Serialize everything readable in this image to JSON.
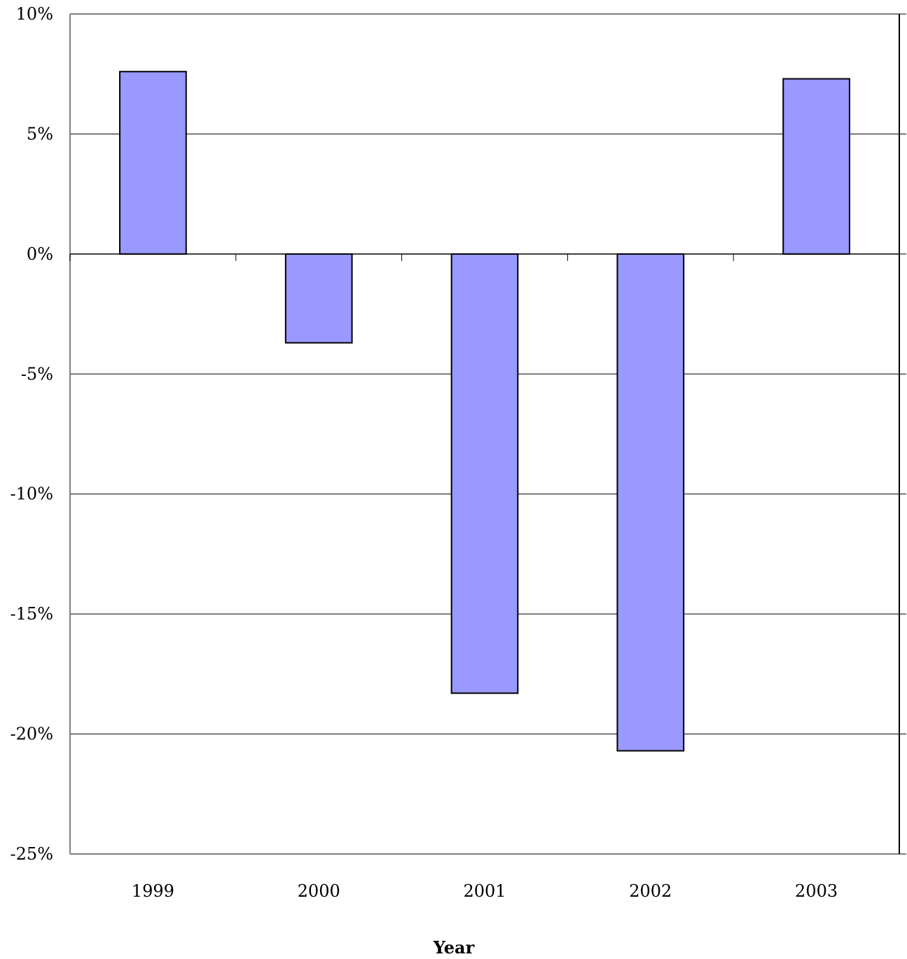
{
  "chart_data": {
    "type": "bar",
    "title": "",
    "xlabel": "Year",
    "ylabel": "",
    "categories": [
      "1999",
      "2000",
      "2001",
      "2002",
      "2003"
    ],
    "values": [
      7.6,
      -3.7,
      -18.3,
      -20.7,
      7.3
    ],
    "ylim": [
      -25,
      10
    ],
    "yticks": [
      10,
      5,
      0,
      -5,
      -10,
      -15,
      -20,
      -25
    ],
    "ytick_labels": [
      "10%",
      "5%",
      "0%",
      "-5%",
      "-10%",
      "-15%",
      "-20%",
      "-25%"
    ],
    "grid": true,
    "legend": "none",
    "colors": {
      "bar_fill": "#9999ff",
      "bar_stroke": "#000000",
      "grid": "#000000",
      "frame": "#808080"
    }
  }
}
